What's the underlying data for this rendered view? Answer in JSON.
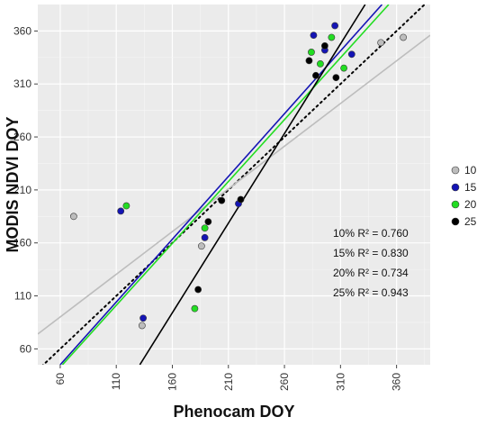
{
  "chart_data": {
    "type": "scatter",
    "xlabel": "Phenocam DOY",
    "ylabel": "MODIS NDVI DOY",
    "xlim": [
      40,
      390
    ],
    "ylim": [
      45,
      385
    ],
    "xticks": [
      60,
      110,
      160,
      210,
      260,
      310,
      360
    ],
    "yticks": [
      60,
      110,
      160,
      210,
      260,
      310,
      360
    ],
    "grid": true,
    "legend_position": "right",
    "series": [
      {
        "name": "10",
        "color": "#bdbdbd",
        "points": [
          [
            72,
            185
          ],
          [
            133,
            82
          ],
          [
            186,
            157
          ],
          [
            346,
            349
          ],
          [
            366,
            354
          ]
        ],
        "fit_line": [
          [
            40,
            74
          ],
          [
            390,
            356
          ]
        ]
      },
      {
        "name": "15",
        "color": "#1414b4",
        "points": [
          [
            114,
            190
          ],
          [
            134,
            89
          ],
          [
            189,
            165
          ],
          [
            219,
            197
          ],
          [
            286,
            356
          ],
          [
            296,
            342
          ],
          [
            305,
            365
          ],
          [
            320,
            338
          ]
        ],
        "fit_line": [
          [
            60,
            45
          ],
          [
            347,
            385
          ]
        ]
      },
      {
        "name": "20",
        "color": "#22dd22",
        "points": [
          [
            119,
            195
          ],
          [
            180,
            98
          ],
          [
            189,
            174
          ],
          [
            284,
            340
          ],
          [
            292,
            329
          ],
          [
            302,
            354
          ],
          [
            313,
            325
          ]
        ],
        "fit_line": [
          [
            62,
            45
          ],
          [
            353,
            385
          ]
        ]
      },
      {
        "name": "25",
        "color": "#000000",
        "points": [
          [
            183,
            116
          ],
          [
            192,
            180
          ],
          [
            204,
            200
          ],
          [
            221,
            201
          ],
          [
            282,
            332
          ],
          [
            288,
            318
          ],
          [
            296,
            346
          ],
          [
            306,
            316
          ]
        ],
        "fit_line": [
          [
            131,
            45
          ],
          [
            332,
            385
          ]
        ]
      }
    ],
    "reference_line": {
      "style": "dotted",
      "color": "#000000",
      "points": [
        [
          40,
          40
        ],
        [
          390,
          390
        ]
      ]
    },
    "annotations": [
      "10% R² = 0.760",
      "15% R² = 0.830",
      "20% R² = 0.734",
      "25% R² = 0.943"
    ]
  }
}
